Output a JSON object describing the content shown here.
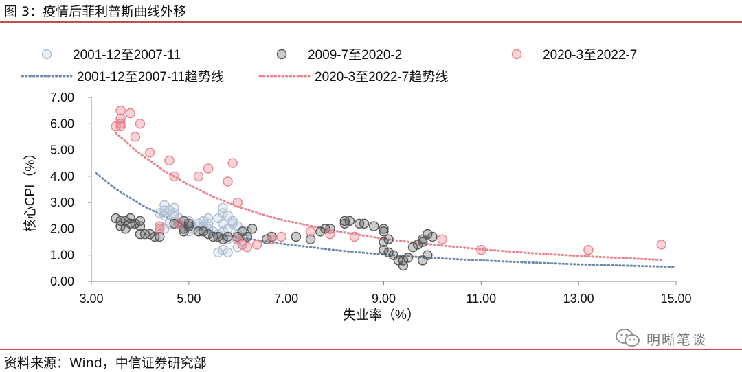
{
  "header": {
    "title": "图 3：疫情后菲利普斯曲线外移"
  },
  "footer": {
    "source": "资料来源：Wind，中信证券研究部"
  },
  "watermark": {
    "text": "明晰笔谈",
    "icon": "wechat-icon"
  },
  "colors": {
    "blue": "#aebfd3",
    "gray": "#555555",
    "pink": "#e8838d",
    "blue_trend": "#6e89ad",
    "pink_trend": "#e8838d",
    "rule": "#c0504d"
  },
  "chart_data": {
    "type": "scatter",
    "title": "",
    "xlabel": "失业率（%）",
    "ylabel": "核心CPI（%）",
    "xlim": [
      3,
      15
    ],
    "ylim": [
      0,
      7
    ],
    "x_ticks": [
      "3.00",
      "5.00",
      "7.00",
      "9.00",
      "11.00",
      "13.00",
      "15.00"
    ],
    "y_ticks": [
      "0.00",
      "1.00",
      "2.00",
      "3.00",
      "4.00",
      "5.00",
      "6.00",
      "7.00"
    ],
    "legend_position": "top",
    "series": [
      {
        "name": "2001-12至2007-11",
        "kind": "points",
        "color": "#aebfd3",
        "points": [
          [
            4.4,
            2.6
          ],
          [
            4.5,
            2.9
          ],
          [
            4.6,
            2.7
          ],
          [
            4.7,
            2.8
          ],
          [
            4.5,
            2.5
          ],
          [
            4.6,
            2.2
          ],
          [
            4.8,
            2.4
          ],
          [
            4.5,
            2.7
          ],
          [
            4.7,
            2.6
          ],
          [
            5.0,
            2.3
          ],
          [
            5.2,
            2.2
          ],
          [
            5.3,
            2.1
          ],
          [
            5.4,
            2.0
          ],
          [
            5.5,
            1.9
          ],
          [
            5.6,
            1.8
          ],
          [
            5.7,
            1.9
          ],
          [
            5.8,
            2.0
          ],
          [
            5.7,
            2.2
          ],
          [
            5.6,
            2.4
          ],
          [
            5.4,
            2.4
          ],
          [
            5.3,
            2.3
          ],
          [
            5.2,
            2.1
          ],
          [
            5.1,
            2.0
          ],
          [
            5.0,
            1.9
          ],
          [
            5.8,
            2.5
          ],
          [
            5.9,
            2.3
          ],
          [
            6.0,
            2.1
          ],
          [
            5.8,
            1.6
          ],
          [
            5.7,
            1.2
          ],
          [
            5.8,
            1.1
          ],
          [
            6.0,
            1.3
          ],
          [
            6.1,
            1.5
          ],
          [
            6.2,
            1.9
          ],
          [
            6.0,
            1.8
          ],
          [
            5.7,
            2.8
          ],
          [
            5.7,
            2.6
          ],
          [
            5.9,
            2.2
          ],
          [
            4.4,
            2.1
          ],
          [
            4.5,
            2.0
          ],
          [
            4.7,
            2.5
          ],
          [
            4.8,
            2.2
          ],
          [
            5.6,
            1.1
          ],
          [
            5.4,
            2.2
          ]
        ]
      },
      {
        "name": "2009-7至2020-2",
        "kind": "points",
        "color": "#555555",
        "points": [
          [
            3.5,
            2.4
          ],
          [
            3.6,
            2.3
          ],
          [
            3.7,
            2.3
          ],
          [
            3.8,
            2.4
          ],
          [
            3.9,
            2.2
          ],
          [
            4.0,
            2.3
          ],
          [
            3.6,
            2.1
          ],
          [
            3.7,
            2.0
          ],
          [
            3.8,
            2.2
          ],
          [
            4.0,
            2.1
          ],
          [
            4.0,
            1.8
          ],
          [
            4.1,
            1.8
          ],
          [
            4.2,
            1.8
          ],
          [
            4.3,
            1.7
          ],
          [
            4.4,
            1.7
          ],
          [
            4.7,
            2.2
          ],
          [
            4.9,
            2.3
          ],
          [
            4.8,
            2.2
          ],
          [
            5.0,
            2.2
          ],
          [
            4.9,
            2.0
          ],
          [
            4.9,
            1.9
          ],
          [
            5.2,
            1.9
          ],
          [
            5.3,
            1.9
          ],
          [
            5.4,
            1.8
          ],
          [
            5.5,
            1.7
          ],
          [
            5.6,
            1.7
          ],
          [
            5.7,
            1.6
          ],
          [
            5.8,
            1.7
          ],
          [
            6.0,
            1.7
          ],
          [
            6.1,
            1.9
          ],
          [
            6.2,
            1.7
          ],
          [
            6.3,
            2.0
          ],
          [
            6.6,
            1.6
          ],
          [
            6.7,
            1.7
          ],
          [
            7.2,
            1.7
          ],
          [
            7.5,
            1.6
          ],
          [
            7.7,
            1.9
          ],
          [
            7.8,
            2.0
          ],
          [
            7.9,
            2.0
          ],
          [
            8.2,
            2.3
          ],
          [
            8.2,
            2.2
          ],
          [
            8.3,
            2.3
          ],
          [
            8.5,
            2.2
          ],
          [
            8.6,
            2.2
          ],
          [
            8.8,
            2.1
          ],
          [
            9.0,
            2.0
          ],
          [
            9.0,
            1.9
          ],
          [
            9.0,
            1.5
          ],
          [
            9.0,
            1.2
          ],
          [
            9.1,
            1.6
          ],
          [
            9.1,
            1.1
          ],
          [
            9.2,
            1.0
          ],
          [
            9.3,
            0.8
          ],
          [
            9.4,
            0.6
          ],
          [
            9.4,
            0.8
          ],
          [
            9.5,
            0.9
          ],
          [
            9.6,
            1.3
          ],
          [
            9.7,
            1.4
          ],
          [
            9.8,
            1.5
          ],
          [
            9.8,
            1.6
          ],
          [
            9.8,
            0.8
          ],
          [
            9.9,
            1.8
          ],
          [
            9.9,
            1.0
          ],
          [
            10.0,
            1.7
          ],
          [
            5.0,
            2.1
          ]
        ]
      },
      {
        "name": "2020-3至2022-7",
        "kind": "points",
        "color": "#e8838d",
        "points": [
          [
            3.5,
            5.9
          ],
          [
            3.6,
            6.0
          ],
          [
            3.6,
            6.5
          ],
          [
            3.6,
            6.2
          ],
          [
            3.6,
            5.9
          ],
          [
            3.8,
            6.4
          ],
          [
            3.9,
            5.5
          ],
          [
            4.0,
            6.0
          ],
          [
            4.2,
            4.9
          ],
          [
            4.4,
            2.0
          ],
          [
            4.4,
            2.1
          ],
          [
            4.6,
            4.6
          ],
          [
            4.7,
            4.0
          ],
          [
            4.8,
            2.2
          ],
          [
            5.2,
            4.0
          ],
          [
            5.4,
            4.3
          ],
          [
            5.8,
            3.8
          ],
          [
            5.9,
            4.5
          ],
          [
            6.0,
            3.0
          ],
          [
            6.0,
            1.6
          ],
          [
            6.1,
            1.4
          ],
          [
            6.2,
            1.3
          ],
          [
            6.4,
            1.4
          ],
          [
            6.7,
            1.6
          ],
          [
            6.9,
            1.7
          ],
          [
            7.5,
            1.9
          ],
          [
            7.9,
            1.8
          ],
          [
            8.4,
            1.7
          ],
          [
            10.2,
            1.6
          ],
          [
            11.0,
            1.2
          ],
          [
            13.2,
            1.2
          ],
          [
            14.7,
            1.4
          ]
        ]
      },
      {
        "name": "2001-12至2007-11趋势线",
        "kind": "trend",
        "color": "#6e89ad",
        "x": [
          3.1,
          3.5,
          4.0,
          4.5,
          5.0,
          5.5,
          6.0,
          7.0,
          8.0,
          9.0,
          10.0,
          11.0,
          12.0,
          13.0,
          14.0,
          15.0
        ],
        "y": [
          4.11,
          3.52,
          2.94,
          2.47,
          2.11,
          1.86,
          1.68,
          1.41,
          1.19,
          1.02,
          0.89,
          0.8,
          0.72,
          0.65,
          0.6,
          0.55
        ]
      },
      {
        "name": "2020-3至2022-7趋势线",
        "kind": "trend",
        "color": "#e8838d",
        "x": [
          3.5,
          4.0,
          4.5,
          5.0,
          5.5,
          6.0,
          6.5,
          7.0,
          8.0,
          9.0,
          10.0,
          11.0,
          12.0,
          13.0,
          14.0,
          14.7
        ],
        "y": [
          5.65,
          4.85,
          4.2,
          3.68,
          3.22,
          2.85,
          2.55,
          2.3,
          1.92,
          1.62,
          1.4,
          1.22,
          1.08,
          0.97,
          0.88,
          0.82
        ]
      }
    ]
  }
}
